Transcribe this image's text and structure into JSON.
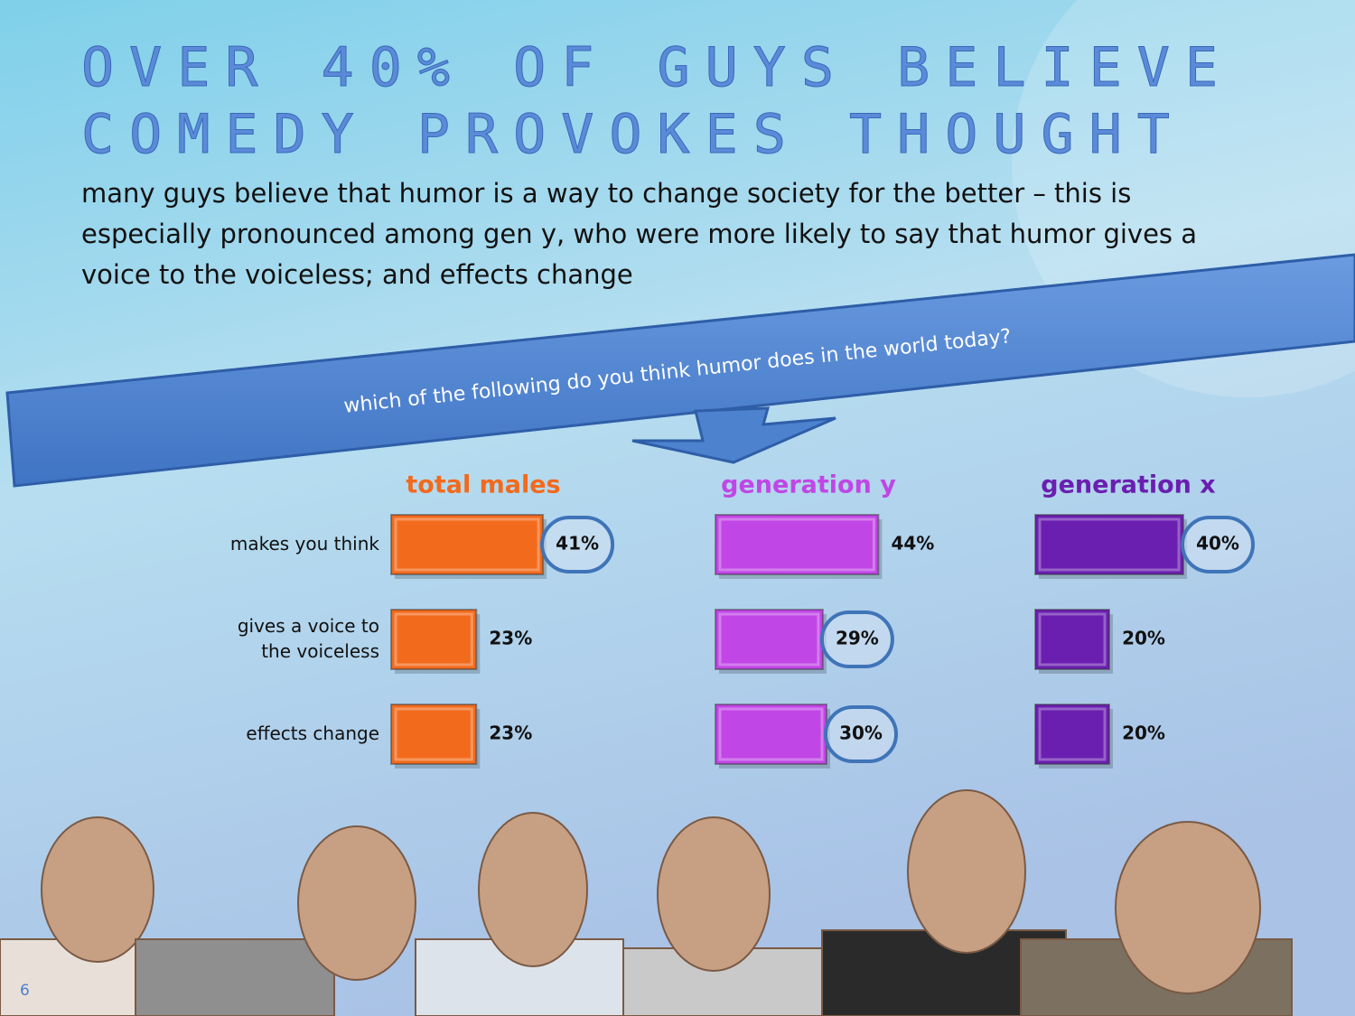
{
  "title": "OVER 40% OF GUYS BELIEVE COMEDY PROVOKES THOUGHT",
  "description": "many guys believe that humor is a way to change society for the better – this is especially pronounced among gen y, who were more likely to say that humor gives a voice to the voiceless; and effects change",
  "question": "which of the following do you think humor does in the world today?",
  "page_number": "6",
  "chart_data": {
    "type": "bar",
    "categories": [
      "makes you think",
      "gives a voice to the voiceless",
      "effects change"
    ],
    "series": [
      {
        "name": "total males",
        "color": "#f26a1c",
        "values": [
          41,
          23,
          23
        ],
        "value_labels": [
          "41%",
          "23%",
          "23%"
        ],
        "circled": [
          true,
          false,
          false
        ]
      },
      {
        "name": "generation y",
        "color": "#c146e6",
        "values": [
          44,
          29,
          30
        ],
        "value_labels": [
          "44%",
          "29%",
          "30%"
        ],
        "circled": [
          false,
          true,
          true
        ]
      },
      {
        "name": "generation x",
        "color": "#6a1fb0",
        "values": [
          40,
          20,
          20
        ],
        "value_labels": [
          "40%",
          "20%",
          "20%"
        ],
        "circled": [
          true,
          false,
          false
        ]
      }
    ]
  }
}
